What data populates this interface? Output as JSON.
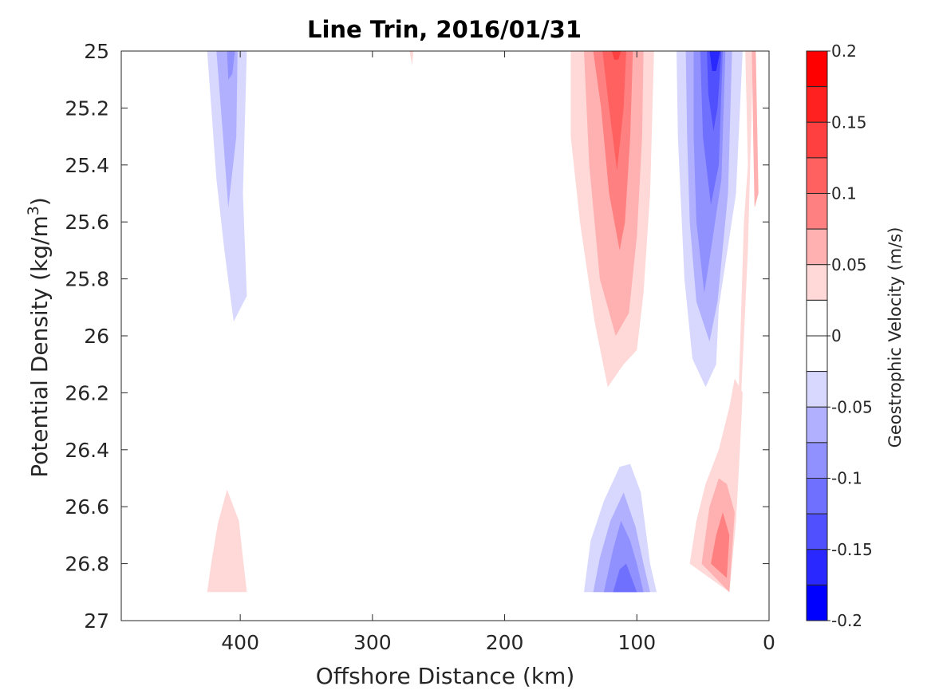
{
  "chart_data": {
    "type": "heatmap",
    "subtype": "filled-contour",
    "title": "Line Trin, 2016/01/31",
    "xlabel": "Offshore Distance (km)",
    "ylabel": "Potential Density (kg/m",
    "ylabel_superscript": "3",
    "ylabel_suffix": ")",
    "xlim": [
      490,
      0
    ],
    "x_reversed": true,
    "ylim": [
      25,
      27
    ],
    "y_reversed": true,
    "x_ticks": [
      400,
      300,
      200,
      100,
      0
    ],
    "y_ticks": [
      25,
      25.2,
      25.4,
      25.6,
      25.8,
      26,
      26.2,
      26.4,
      26.6,
      26.8,
      27
    ],
    "y_tick_labels": [
      "25",
      "25.2",
      "25.4",
      "25.6",
      "25.8",
      "26",
      "26.2",
      "26.4",
      "26.6",
      "26.8",
      "27"
    ],
    "grid": false,
    "colorbar": {
      "label": "Geostrophic Velocity (m/s)",
      "placement": "right",
      "range": [
        -0.2,
        0.2
      ],
      "ticks": [
        0.2,
        0.15,
        0.1,
        0.05,
        0,
        -0.05,
        -0.1,
        -0.15,
        -0.2
      ],
      "tick_labels": [
        "0.2",
        "0.15",
        "0.1",
        "0.05",
        "0",
        "-0.05",
        "-0.1",
        "-0.15",
        "-0.2"
      ],
      "levels": [
        {
          "min": 0.175,
          "max": 0.2,
          "color": "#ff0000"
        },
        {
          "min": 0.15,
          "max": 0.175,
          "color": "#ff2020"
        },
        {
          "min": 0.125,
          "max": 0.15,
          "color": "#ff4040"
        },
        {
          "min": 0.1,
          "max": 0.125,
          "color": "#ff6060"
        },
        {
          "min": 0.075,
          "max": 0.1,
          "color": "#ff8080"
        },
        {
          "min": 0.05,
          "max": 0.075,
          "color": "#ffb0b0"
        },
        {
          "min": 0.025,
          "max": 0.05,
          "color": "#ffd8d8"
        },
        {
          "min": 0,
          "max": 0.025,
          "color": "#ffffff"
        },
        {
          "min": -0.025,
          "max": 0,
          "color": "#ffffff"
        },
        {
          "min": -0.05,
          "max": -0.025,
          "color": "#d8d8ff"
        },
        {
          "min": -0.075,
          "max": -0.05,
          "color": "#b0b0ff"
        },
        {
          "min": -0.1,
          "max": -0.075,
          "color": "#9090ff"
        },
        {
          "min": -0.125,
          "max": -0.1,
          "color": "#7070ff"
        },
        {
          "min": -0.15,
          "max": -0.125,
          "color": "#5050ff"
        },
        {
          "min": -0.175,
          "max": -0.15,
          "color": "#2828ff"
        },
        {
          "min": -0.2,
          "max": -0.175,
          "color": "#0000ff"
        }
      ]
    },
    "regions": [
      {
        "level": -0.0375,
        "points": [
          [
            425,
            25
          ],
          [
            395,
            25
          ],
          [
            398,
            25.5
          ],
          [
            395,
            25.86
          ],
          [
            405,
            25.95
          ],
          [
            412,
            25.7
          ],
          [
            418,
            25.45
          ]
        ]
      },
      {
        "level": -0.0625,
        "points": [
          [
            418,
            25
          ],
          [
            402,
            25
          ],
          [
            403,
            25.3
          ],
          [
            409,
            25.55
          ],
          [
            413,
            25.3
          ]
        ]
      },
      {
        "level": -0.0875,
        "points": [
          [
            410,
            25
          ],
          [
            404,
            25
          ],
          [
            406,
            25.08
          ],
          [
            409,
            25.1
          ]
        ]
      },
      {
        "level": 0.0375,
        "points": [
          [
            272,
            25
          ],
          [
            269,
            25
          ],
          [
            270,
            25.05
          ]
        ]
      },
      {
        "level": 0.0375,
        "points": [
          [
            150,
            25
          ],
          [
            87,
            25
          ],
          [
            90,
            25.5
          ],
          [
            95,
            25.85
          ],
          [
            100,
            26.05
          ],
          [
            110,
            26.1
          ],
          [
            122,
            26.18
          ],
          [
            132,
            25.95
          ],
          [
            143,
            25.6
          ],
          [
            150,
            25.3
          ]
        ]
      },
      {
        "level": 0.0625,
        "points": [
          [
            140,
            25
          ],
          [
            95,
            25
          ],
          [
            96,
            25.3
          ],
          [
            100,
            25.65
          ],
          [
            106,
            25.92
          ],
          [
            116,
            26
          ],
          [
            128,
            25.8
          ],
          [
            136,
            25.4
          ]
        ]
      },
      {
        "level": 0.0875,
        "points": [
          [
            133,
            25
          ],
          [
            103,
            25
          ],
          [
            105,
            25.3
          ],
          [
            109,
            25.6
          ],
          [
            113,
            25.7
          ],
          [
            121,
            25.5
          ],
          [
            127,
            25.2
          ]
        ]
      },
      {
        "level": 0.1125,
        "points": [
          [
            126,
            25
          ],
          [
            108,
            25
          ],
          [
            110,
            25.2
          ],
          [
            115,
            25.42
          ],
          [
            121,
            25.2
          ]
        ]
      },
      {
        "level": 0.1375,
        "points": [
          [
            119,
            25
          ],
          [
            112,
            25
          ],
          [
            114,
            25.03
          ],
          [
            117,
            25.03
          ]
        ]
      },
      {
        "level": -0.0375,
        "points": [
          [
            70,
            25
          ],
          [
            20,
            25
          ],
          [
            25,
            25.5
          ],
          [
            38,
            25.9
          ],
          [
            40,
            26.1
          ],
          [
            48,
            26.18
          ],
          [
            58,
            26.08
          ],
          [
            64,
            25.8
          ],
          [
            69,
            25.3
          ]
        ]
      },
      {
        "level": -0.0625,
        "points": [
          [
            63,
            25
          ],
          [
            28,
            25
          ],
          [
            31,
            25.5
          ],
          [
            39,
            25.88
          ],
          [
            45,
            26.02
          ],
          [
            55,
            25.88
          ],
          [
            60,
            25.6
          ],
          [
            62,
            25.3
          ]
        ]
      },
      {
        "level": -0.0875,
        "points": [
          [
            57,
            25
          ],
          [
            33,
            25
          ],
          [
            36,
            25.45
          ],
          [
            44,
            25.7
          ],
          [
            49,
            25.85
          ],
          [
            55,
            25.6
          ],
          [
            57,
            25.3
          ]
        ]
      },
      {
        "level": -0.1125,
        "points": [
          [
            52,
            25
          ],
          [
            35,
            25
          ],
          [
            38,
            25.4
          ],
          [
            44,
            25.54
          ],
          [
            50,
            25.3
          ]
        ]
      },
      {
        "level": -0.1375,
        "points": [
          [
            47,
            25
          ],
          [
            36,
            25
          ],
          [
            39,
            25.2
          ],
          [
            42,
            25.28
          ],
          [
            46,
            25.15
          ]
        ]
      },
      {
        "level": -0.1625,
        "points": [
          [
            45,
            25
          ],
          [
            37,
            25
          ],
          [
            40,
            25.07
          ],
          [
            43,
            25.07
          ]
        ]
      },
      {
        "level": 0.0375,
        "points": [
          [
            18,
            25
          ],
          [
            12,
            25
          ],
          [
            16,
            25.7
          ],
          [
            22,
            26.3
          ],
          [
            27,
            26.55
          ],
          [
            31,
            26.5
          ],
          [
            23,
            26.2
          ],
          [
            19,
            25.6
          ],
          [
            16,
            25.4
          ]
        ]
      },
      {
        "level": 0.0625,
        "points": [
          [
            13,
            25
          ],
          [
            10,
            25
          ],
          [
            8,
            25.5
          ],
          [
            11,
            25.55
          ],
          [
            12,
            25.3
          ]
        ]
      },
      {
        "level": -0.0375,
        "points": [
          [
            140,
            26.9
          ],
          [
            85,
            26.9
          ],
          [
            90,
            26.8
          ],
          [
            97,
            26.55
          ],
          [
            105,
            26.45
          ],
          [
            113,
            26.46
          ],
          [
            125,
            26.58
          ],
          [
            135,
            26.72
          ]
        ]
      },
      {
        "level": -0.0625,
        "points": [
          [
            133,
            26.9
          ],
          [
            90,
            26.9
          ],
          [
            95,
            26.8
          ],
          [
            101,
            26.67
          ],
          [
            110,
            26.55
          ],
          [
            120,
            26.65
          ],
          [
            128,
            26.78
          ]
        ]
      },
      {
        "level": -0.0875,
        "points": [
          [
            125,
            26.9
          ],
          [
            95,
            26.9
          ],
          [
            100,
            26.8
          ],
          [
            105,
            26.72
          ],
          [
            112,
            26.65
          ],
          [
            118,
            26.75
          ]
        ]
      },
      {
        "level": -0.1125,
        "points": [
          [
            118,
            26.9
          ],
          [
            100,
            26.9
          ],
          [
            104,
            26.85
          ],
          [
            108,
            26.8
          ],
          [
            113,
            26.82
          ]
        ]
      },
      {
        "level": 0.0375,
        "points": [
          [
            60,
            26.8
          ],
          [
            30,
            26.9
          ],
          [
            25,
            26.65
          ],
          [
            22,
            26.4
          ],
          [
            20,
            26.2
          ],
          [
            26,
            26.15
          ],
          [
            30,
            26.25
          ],
          [
            38,
            26.4
          ],
          [
            48,
            26.52
          ],
          [
            55,
            26.65
          ]
        ]
      },
      {
        "level": 0.0625,
        "points": [
          [
            51,
            26.8
          ],
          [
            30,
            26.9
          ],
          [
            26,
            26.62
          ],
          [
            32,
            26.52
          ],
          [
            38,
            26.5
          ],
          [
            45,
            26.6
          ]
        ]
      },
      {
        "level": 0.0875,
        "points": [
          [
            44,
            26.8
          ],
          [
            32,
            26.85
          ],
          [
            30,
            26.7
          ],
          [
            35,
            26.62
          ],
          [
            40,
            26.7
          ]
        ]
      },
      {
        "level": 0.0375,
        "points": [
          [
            425,
            26.9
          ],
          [
            395,
            26.9
          ],
          [
            398,
            26.78
          ],
          [
            401,
            26.65
          ],
          [
            410,
            26.54
          ],
          [
            417,
            26.66
          ],
          [
            422,
            26.8
          ]
        ]
      }
    ]
  }
}
